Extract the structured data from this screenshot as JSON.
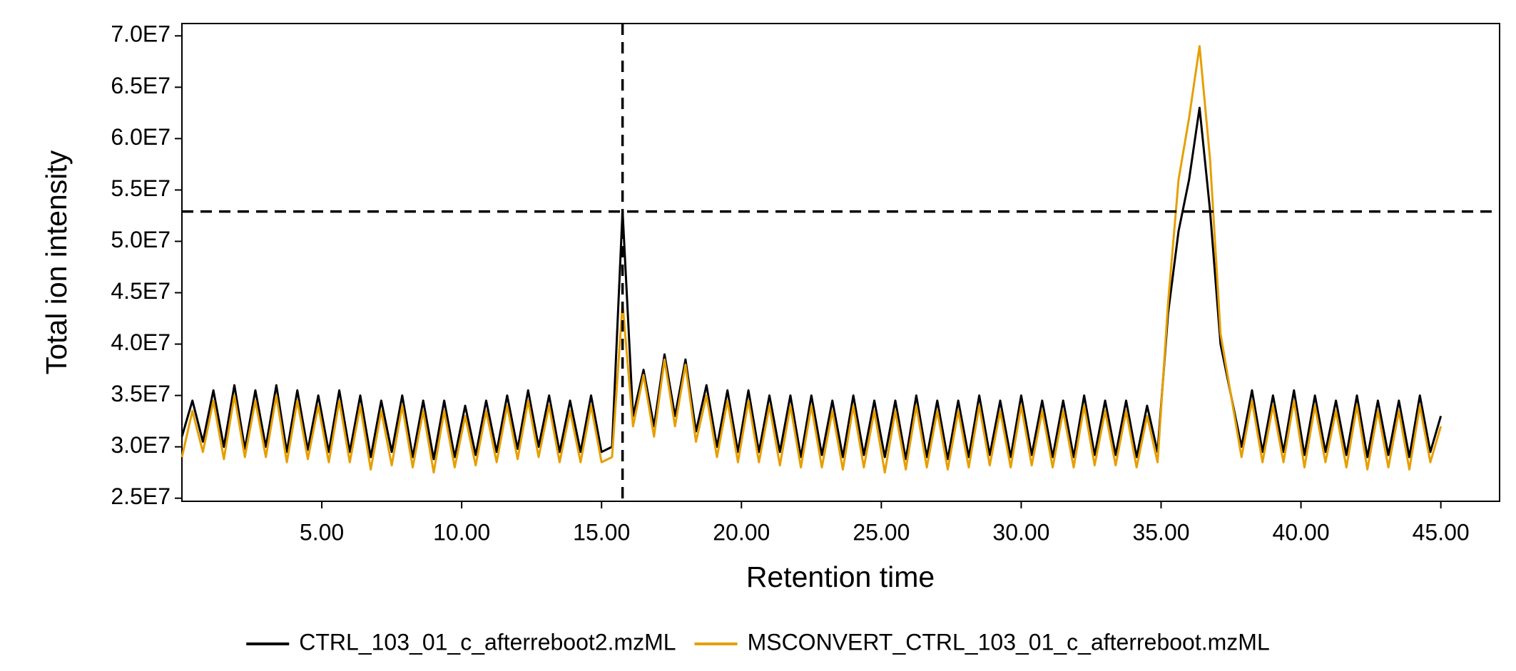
{
  "chart_data": {
    "type": "line",
    "x_label": "Retention time",
    "y_label": "Total ion intensity",
    "x": [
      0,
      0.375,
      0.75,
      1.125,
      1.5,
      1.875,
      2.25,
      2.625,
      3,
      3.375,
      3.75,
      4.125,
      4.5,
      4.875,
      5.25,
      5.625,
      6,
      6.375,
      6.75,
      7.125,
      7.5,
      7.875,
      8.25,
      8.625,
      9,
      9.375,
      9.75,
      10.125,
      10.5,
      10.875,
      11.25,
      11.625,
      12,
      12.375,
      12.75,
      13.125,
      13.5,
      13.875,
      14.25,
      14.625,
      15,
      15.375,
      15.75,
      16.125,
      16.5,
      16.875,
      17.25,
      17.625,
      18,
      18.375,
      18.75,
      19.125,
      19.5,
      19.875,
      20.25,
      20.625,
      21,
      21.375,
      21.75,
      22.125,
      22.5,
      22.875,
      23.25,
      23.625,
      24,
      24.375,
      24.75,
      25.125,
      25.5,
      25.875,
      26.25,
      26.625,
      27,
      27.375,
      27.75,
      28.125,
      28.5,
      28.875,
      29.25,
      29.625,
      30,
      30.375,
      30.75,
      31.125,
      31.5,
      31.875,
      32.25,
      32.625,
      33,
      33.375,
      33.75,
      34.125,
      34.5,
      34.875,
      35.25,
      35.625,
      36,
      36.375,
      36.75,
      37.125,
      37.5,
      37.875,
      38.25,
      38.625,
      39,
      39.375,
      39.75,
      40.125,
      40.5,
      40.875,
      41.25,
      41.625,
      42,
      42.375,
      42.75,
      43.125,
      43.5,
      43.875,
      44.25,
      44.625,
      45
    ],
    "series": [
      {
        "name": "CTRL_103_01_c_afterreboot2.mzML",
        "color": "#000000",
        "values": [
          31000000.0,
          34500000.0,
          30500000.0,
          35500000.0,
          30000000.0,
          36000000.0,
          29800000.0,
          35500000.0,
          30000000.0,
          36000000.0,
          29500000.0,
          35500000.0,
          29700000.0,
          35000000.0,
          29500000.0,
          35500000.0,
          29500000.0,
          35000000.0,
          29000000.0,
          34500000.0,
          29500000.0,
          35000000.0,
          29000000.0,
          34500000.0,
          28800000.0,
          34500000.0,
          29000000.0,
          34000000.0,
          29200000.0,
          34500000.0,
          29500000.0,
          35000000.0,
          29800000.0,
          35500000.0,
          30000000.0,
          35000000.0,
          29500000.0,
          34500000.0,
          29500000.0,
          35000000.0,
          29500000.0,
          30000000.0,
          53000000.0,
          33000000.0,
          37500000.0,
          32000000.0,
          39000000.0,
          33000000.0,
          38500000.0,
          31500000.0,
          36000000.0,
          30000000.0,
          35500000.0,
          29500000.0,
          35500000.0,
          29500000.0,
          35000000.0,
          29500000.0,
          35000000.0,
          29000000.0,
          35000000.0,
          29200000.0,
          34500000.0,
          29000000.0,
          35000000.0,
          29200000.0,
          34500000.0,
          29000000.0,
          34500000.0,
          28800000.0,
          35000000.0,
          29000000.0,
          34500000.0,
          28800000.0,
          34500000.0,
          29000000.0,
          35000000.0,
          29200000.0,
          34500000.0,
          29000000.0,
          35000000.0,
          29200000.0,
          34500000.0,
          29000000.0,
          34500000.0,
          29000000.0,
          35000000.0,
          29200000.0,
          34500000.0,
          29200000.0,
          34500000.0,
          29000000.0,
          34000000.0,
          29500000.0,
          43000000.0,
          51000000.0,
          56000000.0,
          63000000.0,
          53000000.0,
          40000000.0,
          35000000.0,
          30000000.0,
          35500000.0,
          29500000.0,
          35000000.0,
          29500000.0,
          35500000.0,
          29200000.0,
          35000000.0,
          29500000.0,
          34500000.0,
          29200000.0,
          35000000.0,
          29000000.0,
          34500000.0,
          29200000.0,
          34500000.0,
          29000000.0,
          35000000.0,
          29500000.0,
          33000000.0
        ]
      },
      {
        "name": "MSCONVERT_CTRL_103_01_c_afterreboot.mzML",
        "color": "#e69f00",
        "values": [
          29000000.0,
          33500000.0,
          29500000.0,
          34500000.0,
          28800000.0,
          35000000.0,
          29000000.0,
          34500000.0,
          29000000.0,
          35000000.0,
          28500000.0,
          34500000.0,
          28800000.0,
          34000000.0,
          28500000.0,
          34500000.0,
          28500000.0,
          34000000.0,
          27800000.0,
          33500000.0,
          28200000.0,
          34000000.0,
          28000000.0,
          33500000.0,
          27500000.0,
          33500000.0,
          28000000.0,
          33000000.0,
          28200000.0,
          33500000.0,
          28500000.0,
          34000000.0,
          28800000.0,
          34500000.0,
          29000000.0,
          34000000.0,
          28500000.0,
          33500000.0,
          28500000.0,
          34000000.0,
          28500000.0,
          29000000.0,
          44000000.0,
          32000000.0,
          37000000.0,
          31000000.0,
          38500000.0,
          32000000.0,
          38000000.0,
          30500000.0,
          35000000.0,
          29000000.0,
          34500000.0,
          28500000.0,
          34500000.0,
          28500000.0,
          34000000.0,
          28200000.0,
          34000000.0,
          28000000.0,
          34000000.0,
          28000000.0,
          33500000.0,
          27800000.0,
          34000000.0,
          28000000.0,
          33500000.0,
          27500000.0,
          33500000.0,
          27800000.0,
          34000000.0,
          28000000.0,
          33500000.0,
          27800000.0,
          33500000.0,
          28000000.0,
          34000000.0,
          28200000.0,
          33500000.0,
          28000000.0,
          34000000.0,
          28200000.0,
          33500000.0,
          28000000.0,
          33500000.0,
          28000000.0,
          34000000.0,
          28200000.0,
          33500000.0,
          28200000.0,
          33500000.0,
          28000000.0,
          33000000.0,
          28500000.0,
          44000000.0,
          56000000.0,
          62000000.0,
          69000000.0,
          58000000.0,
          41000000.0,
          35000000.0,
          29000000.0,
          34500000.0,
          28500000.0,
          34000000.0,
          28500000.0,
          34500000.0,
          28000000.0,
          34000000.0,
          28500000.0,
          33500000.0,
          28000000.0,
          34000000.0,
          27800000.0,
          33500000.0,
          28000000.0,
          33500000.0,
          27800000.0,
          34000000.0,
          28500000.0,
          32000000.0
        ]
      }
    ],
    "xlim": [
      0,
      47.1
    ],
    "ylim": [
      24700000.0,
      71200000.0
    ],
    "xticks": [
      {
        "value": 5,
        "label": "5.00"
      },
      {
        "value": 10,
        "label": "10.00"
      },
      {
        "value": 15,
        "label": "15.00"
      },
      {
        "value": 20,
        "label": "20.00"
      },
      {
        "value": 25,
        "label": "25.00"
      },
      {
        "value": 30,
        "label": "30.00"
      },
      {
        "value": 35,
        "label": "35.00"
      },
      {
        "value": 40,
        "label": "40.00"
      },
      {
        "value": 45,
        "label": "45.00"
      }
    ],
    "yticks": [
      {
        "value": 25000000.0,
        "label": "2.5E7"
      },
      {
        "value": 30000000.0,
        "label": "3.0E7"
      },
      {
        "value": 35000000.0,
        "label": "3.5E7"
      },
      {
        "value": 40000000.0,
        "label": "4.0E7"
      },
      {
        "value": 45000000.0,
        "label": "4.5E7"
      },
      {
        "value": 50000000.0,
        "label": "5.0E7"
      },
      {
        "value": 55000000.0,
        "label": "5.5E7"
      },
      {
        "value": 60000000.0,
        "label": "6.0E7"
      },
      {
        "value": 65000000.0,
        "label": "6.5E7"
      },
      {
        "value": 70000000.0,
        "label": "7.0E7"
      }
    ],
    "crosshair": {
      "x": 15.75,
      "y": 52900000.0
    },
    "legend": "bottom"
  }
}
